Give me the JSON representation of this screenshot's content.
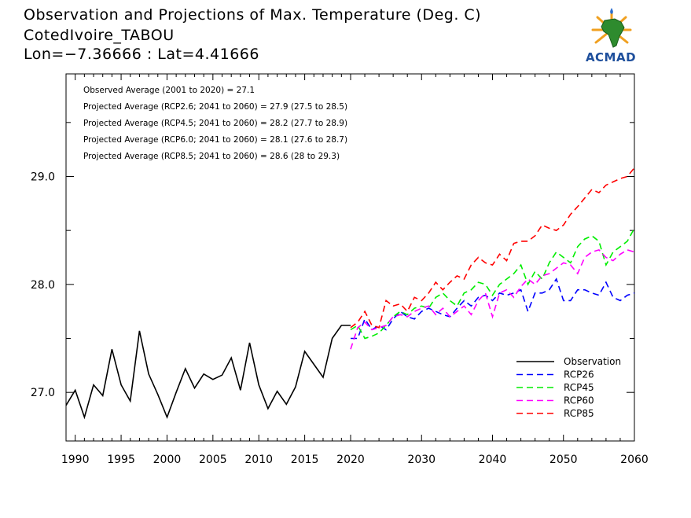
{
  "header": {
    "title_line1": "Observation and Projections of Max. Temperature (Deg. C)",
    "title_line2": "CotedIvoire_TABOU",
    "title_line3": "Lon=−7.36666 : Lat=4.41666"
  },
  "logo": {
    "name": "ACMAD",
    "icon": "africa-map-logo"
  },
  "colors": {
    "Observation": "#000000",
    "RCP26": "#0000ff",
    "RCP45": "#00ee00",
    "RCP60": "#ff00ff",
    "RCP85": "#ff0000"
  },
  "chart_data": {
    "type": "line",
    "xlim": [
      1989,
      2060
    ],
    "ylim": [
      26.55,
      29.95
    ],
    "x_ticks": [
      1990,
      1995,
      2000,
      2005,
      2010,
      2015,
      2020,
      2030,
      2040,
      2050,
      2060
    ],
    "y_ticks": [
      27.0,
      28.0,
      29.0
    ],
    "y_tick_labels": [
      "27.0",
      "28.0",
      "29.0"
    ],
    "grid": false,
    "legend_position": "bottom-right",
    "annotations": [
      "Observed Average (2001 to 2020) = 27.1",
      "Projected Average (RCP2.6; 2041 to 2060) = 27.9 (27.5 to 28.5)",
      "Projected Average (RCP4.5; 2041 to 2060) = 28.2 (27.7 to 28.9)",
      "Projected Average (RCP6.0; 2041 to 2060) = 28.1 (27.6 to 28.7)",
      "Projected Average (RCP8.5; 2041 to 2060) = 28.6 (28 to 29.3)"
    ],
    "series": [
      {
        "name": "Observation",
        "style": "solid",
        "x": [
          1989,
          1990,
          1991,
          1992,
          1993,
          1994,
          1995,
          1996,
          1997,
          1998,
          1999,
          2000,
          2001,
          2002,
          2003,
          2004,
          2005,
          2006,
          2007,
          2008,
          2009,
          2010,
          2011,
          2012,
          2013,
          2014,
          2015,
          2016,
          2017,
          2018,
          2019,
          2020
        ],
        "y": [
          26.88,
          27.02,
          26.77,
          27.07,
          26.97,
          27.4,
          27.07,
          26.92,
          27.57,
          27.17,
          26.98,
          26.77,
          27.0,
          27.22,
          27.04,
          27.17,
          27.12,
          27.16,
          27.32,
          27.02,
          27.46,
          27.07,
          26.85,
          27.01,
          26.89,
          27.05,
          27.38,
          27.26,
          27.14,
          27.5,
          27.62,
          27.62
        ]
      },
      {
        "name": "RCP26",
        "style": "dashed",
        "x": [
          2020,
          2021,
          2022,
          2023,
          2024,
          2025,
          2026,
          2027,
          2028,
          2029,
          2030,
          2031,
          2032,
          2033,
          2034,
          2035,
          2036,
          2037,
          2038,
          2039,
          2040,
          2041,
          2042,
          2043,
          2044,
          2045,
          2046,
          2047,
          2048,
          2049,
          2050,
          2051,
          2052,
          2053,
          2054,
          2055,
          2056,
          2057,
          2058,
          2059,
          2060
        ],
        "y": [
          27.5,
          27.5,
          27.68,
          27.58,
          27.62,
          27.58,
          27.68,
          27.75,
          27.7,
          27.68,
          27.75,
          27.78,
          27.75,
          27.72,
          27.7,
          27.78,
          27.85,
          27.8,
          27.88,
          27.9,
          27.85,
          27.92,
          27.9,
          27.92,
          27.95,
          27.75,
          27.92,
          27.92,
          27.95,
          28.05,
          27.85,
          27.85,
          27.95,
          27.95,
          27.92,
          27.9,
          28.02,
          27.88,
          27.85,
          27.9,
          27.92
        ]
      },
      {
        "name": "RCP45",
        "style": "dashed",
        "x": [
          2020,
          2021,
          2022,
          2023,
          2024,
          2025,
          2026,
          2027,
          2028,
          2029,
          2030,
          2031,
          2032,
          2033,
          2034,
          2035,
          2036,
          2037,
          2038,
          2039,
          2040,
          2041,
          2042,
          2043,
          2044,
          2045,
          2046,
          2047,
          2048,
          2049,
          2050,
          2051,
          2052,
          2053,
          2054,
          2055,
          2056,
          2057,
          2058,
          2059,
          2060
        ],
        "y": [
          27.58,
          27.62,
          27.5,
          27.52,
          27.55,
          27.62,
          27.7,
          27.75,
          27.72,
          27.78,
          27.8,
          27.78,
          27.88,
          27.92,
          27.85,
          27.8,
          27.92,
          27.95,
          28.02,
          28.0,
          27.9,
          28.0,
          28.05,
          28.1,
          28.18,
          28.0,
          28.12,
          28.05,
          28.2,
          28.3,
          28.25,
          28.2,
          28.35,
          28.42,
          28.45,
          28.4,
          28.18,
          28.3,
          28.35,
          28.4,
          28.52
        ]
      },
      {
        "name": "RCP60",
        "style": "dashed",
        "x": [
          2020,
          2021,
          2022,
          2023,
          2024,
          2025,
          2026,
          2027,
          2028,
          2029,
          2030,
          2031,
          2032,
          2033,
          2034,
          2035,
          2036,
          2037,
          2038,
          2039,
          2040,
          2041,
          2042,
          2043,
          2044,
          2045,
          2046,
          2047,
          2048,
          2049,
          2050,
          2051,
          2052,
          2053,
          2054,
          2055,
          2056,
          2057,
          2058,
          2059,
          2060
        ],
        "y": [
          27.4,
          27.6,
          27.65,
          27.58,
          27.6,
          27.62,
          27.7,
          27.72,
          27.7,
          27.75,
          27.78,
          27.8,
          27.72,
          27.78,
          27.7,
          27.75,
          27.8,
          27.72,
          27.85,
          27.92,
          27.7,
          27.92,
          27.95,
          27.88,
          27.98,
          28.05,
          28.0,
          28.08,
          28.1,
          28.15,
          28.2,
          28.18,
          28.1,
          28.25,
          28.3,
          28.32,
          28.25,
          28.22,
          28.28,
          28.32,
          28.3
        ]
      },
      {
        "name": "RCP85",
        "style": "dashed",
        "x": [
          2020,
          2021,
          2022,
          2023,
          2024,
          2025,
          2026,
          2027,
          2028,
          2029,
          2030,
          2031,
          2032,
          2033,
          2034,
          2035,
          2036,
          2037,
          2038,
          2039,
          2040,
          2041,
          2042,
          2043,
          2044,
          2045,
          2046,
          2047,
          2048,
          2049,
          2050,
          2051,
          2052,
          2053,
          2054,
          2055,
          2056,
          2057,
          2058,
          2059,
          2060
        ],
        "y": [
          27.6,
          27.65,
          27.75,
          27.62,
          27.6,
          27.85,
          27.8,
          27.82,
          27.75,
          27.88,
          27.85,
          27.92,
          28.02,
          27.95,
          28.02,
          28.08,
          28.05,
          28.18,
          28.25,
          28.2,
          28.18,
          28.28,
          28.22,
          28.38,
          28.4,
          28.4,
          28.45,
          28.55,
          28.52,
          28.5,
          28.55,
          28.65,
          28.72,
          28.8,
          28.88,
          28.85,
          28.92,
          28.95,
          28.98,
          29.0,
          29.08
        ]
      }
    ]
  }
}
